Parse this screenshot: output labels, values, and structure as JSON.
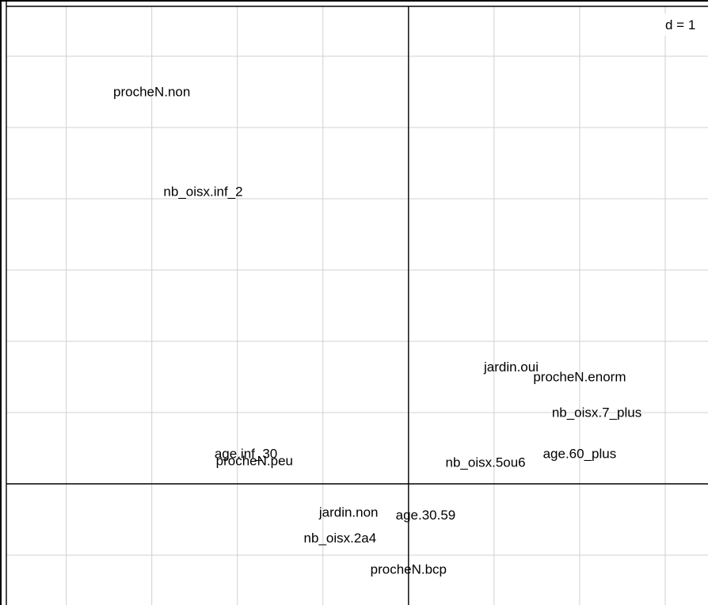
{
  "chart_data": {
    "type": "scatter",
    "title": "",
    "xlabel": "",
    "ylabel": "",
    "grid": true,
    "scale_label": "d = 1",
    "xlim": [
      -2.35,
      1.75
    ],
    "ylim": [
      -0.85,
      3.35
    ],
    "points": [
      {
        "label": "procheN.non",
        "x": -1.5,
        "y": 2.75
      },
      {
        "label": "nb_oisx.inf_2",
        "x": -1.2,
        "y": 2.05
      },
      {
        "label": "jardin.oui",
        "x": 0.6,
        "y": 0.82
      },
      {
        "label": "procheN.enorm",
        "x": 1.0,
        "y": 0.75
      },
      {
        "label": "nb_oisx.7_plus",
        "x": 1.1,
        "y": 0.5
      },
      {
        "label": "age.60_plus",
        "x": 1.0,
        "y": 0.21
      },
      {
        "label": "nb_oisx.5ou6",
        "x": 0.45,
        "y": 0.15
      },
      {
        "label": "age.inf_30",
        "x": -0.95,
        "y": 0.21
      },
      {
        "label": "procheN.peu",
        "x": -0.9,
        "y": 0.16
      },
      {
        "label": "jardin.non",
        "x": -0.35,
        "y": -0.2
      },
      {
        "label": "age.30.59",
        "x": 0.1,
        "y": -0.22
      },
      {
        "label": "nb_oisx.2a4",
        "x": -0.4,
        "y": -0.38
      },
      {
        "label": "procheN.bcp",
        "x": 0.0,
        "y": -0.6
      }
    ]
  }
}
